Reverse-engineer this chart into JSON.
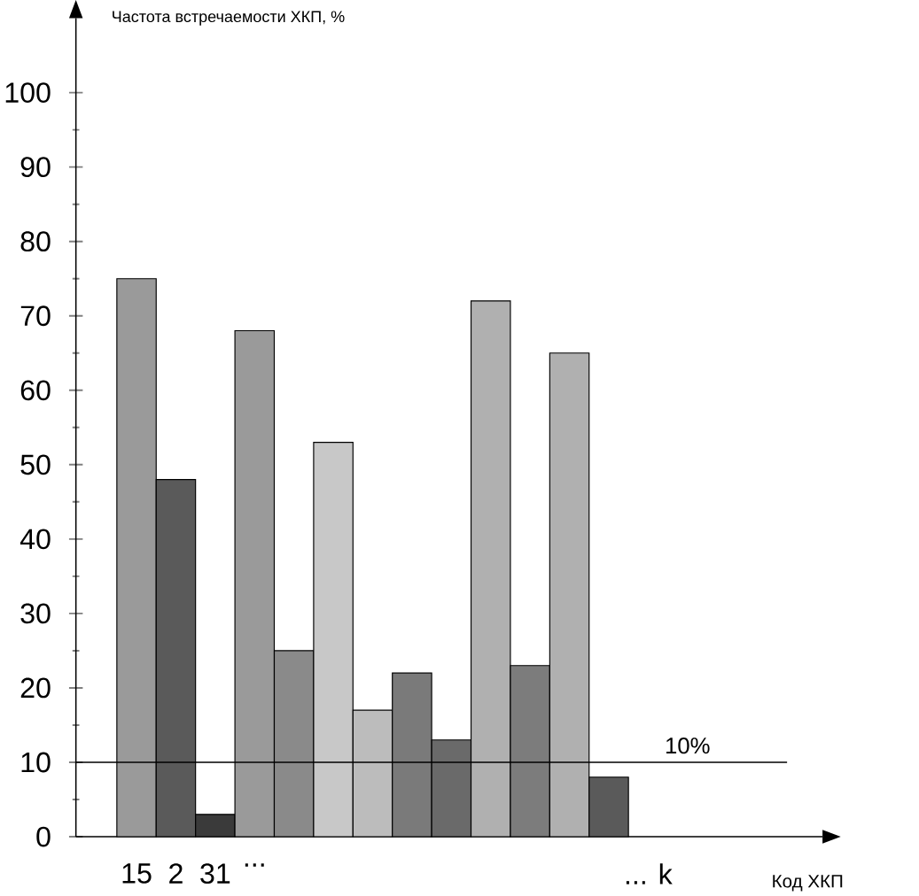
{
  "chart_data": {
    "type": "bar",
    "ylabel": "Частота встречаемости ХКП, %",
    "annotations": [
      "Код ХКП"
    ],
    "categories": [
      "15",
      "2",
      "31",
      "...",
      null,
      null,
      null,
      null,
      null,
      null,
      null,
      null,
      null,
      "... k"
    ],
    "values": [
      75,
      48,
      3,
      68,
      25,
      53,
      17,
      22,
      13,
      72,
      23,
      65,
      8,
      null
    ],
    "colors": [
      "#9a9a9a",
      "#5a5a5a",
      "#3a3a3a",
      "#9a9a9a",
      "#8a8a8a",
      "#c8c8c8",
      "#bcbcbc",
      "#7a7a7a",
      "#6a6a6a",
      "#b0b0b0",
      "#7c7c7c",
      "#b0b0b0",
      "#5a5a5a",
      null
    ],
    "ylim": [
      0,
      110
    ],
    "yticks": [
      0,
      10,
      20,
      30,
      40,
      50,
      60,
      70,
      80,
      90,
      100
    ],
    "ref_lines": [
      {
        "axis": "y",
        "value": 10,
        "label": "10%"
      }
    ]
  }
}
